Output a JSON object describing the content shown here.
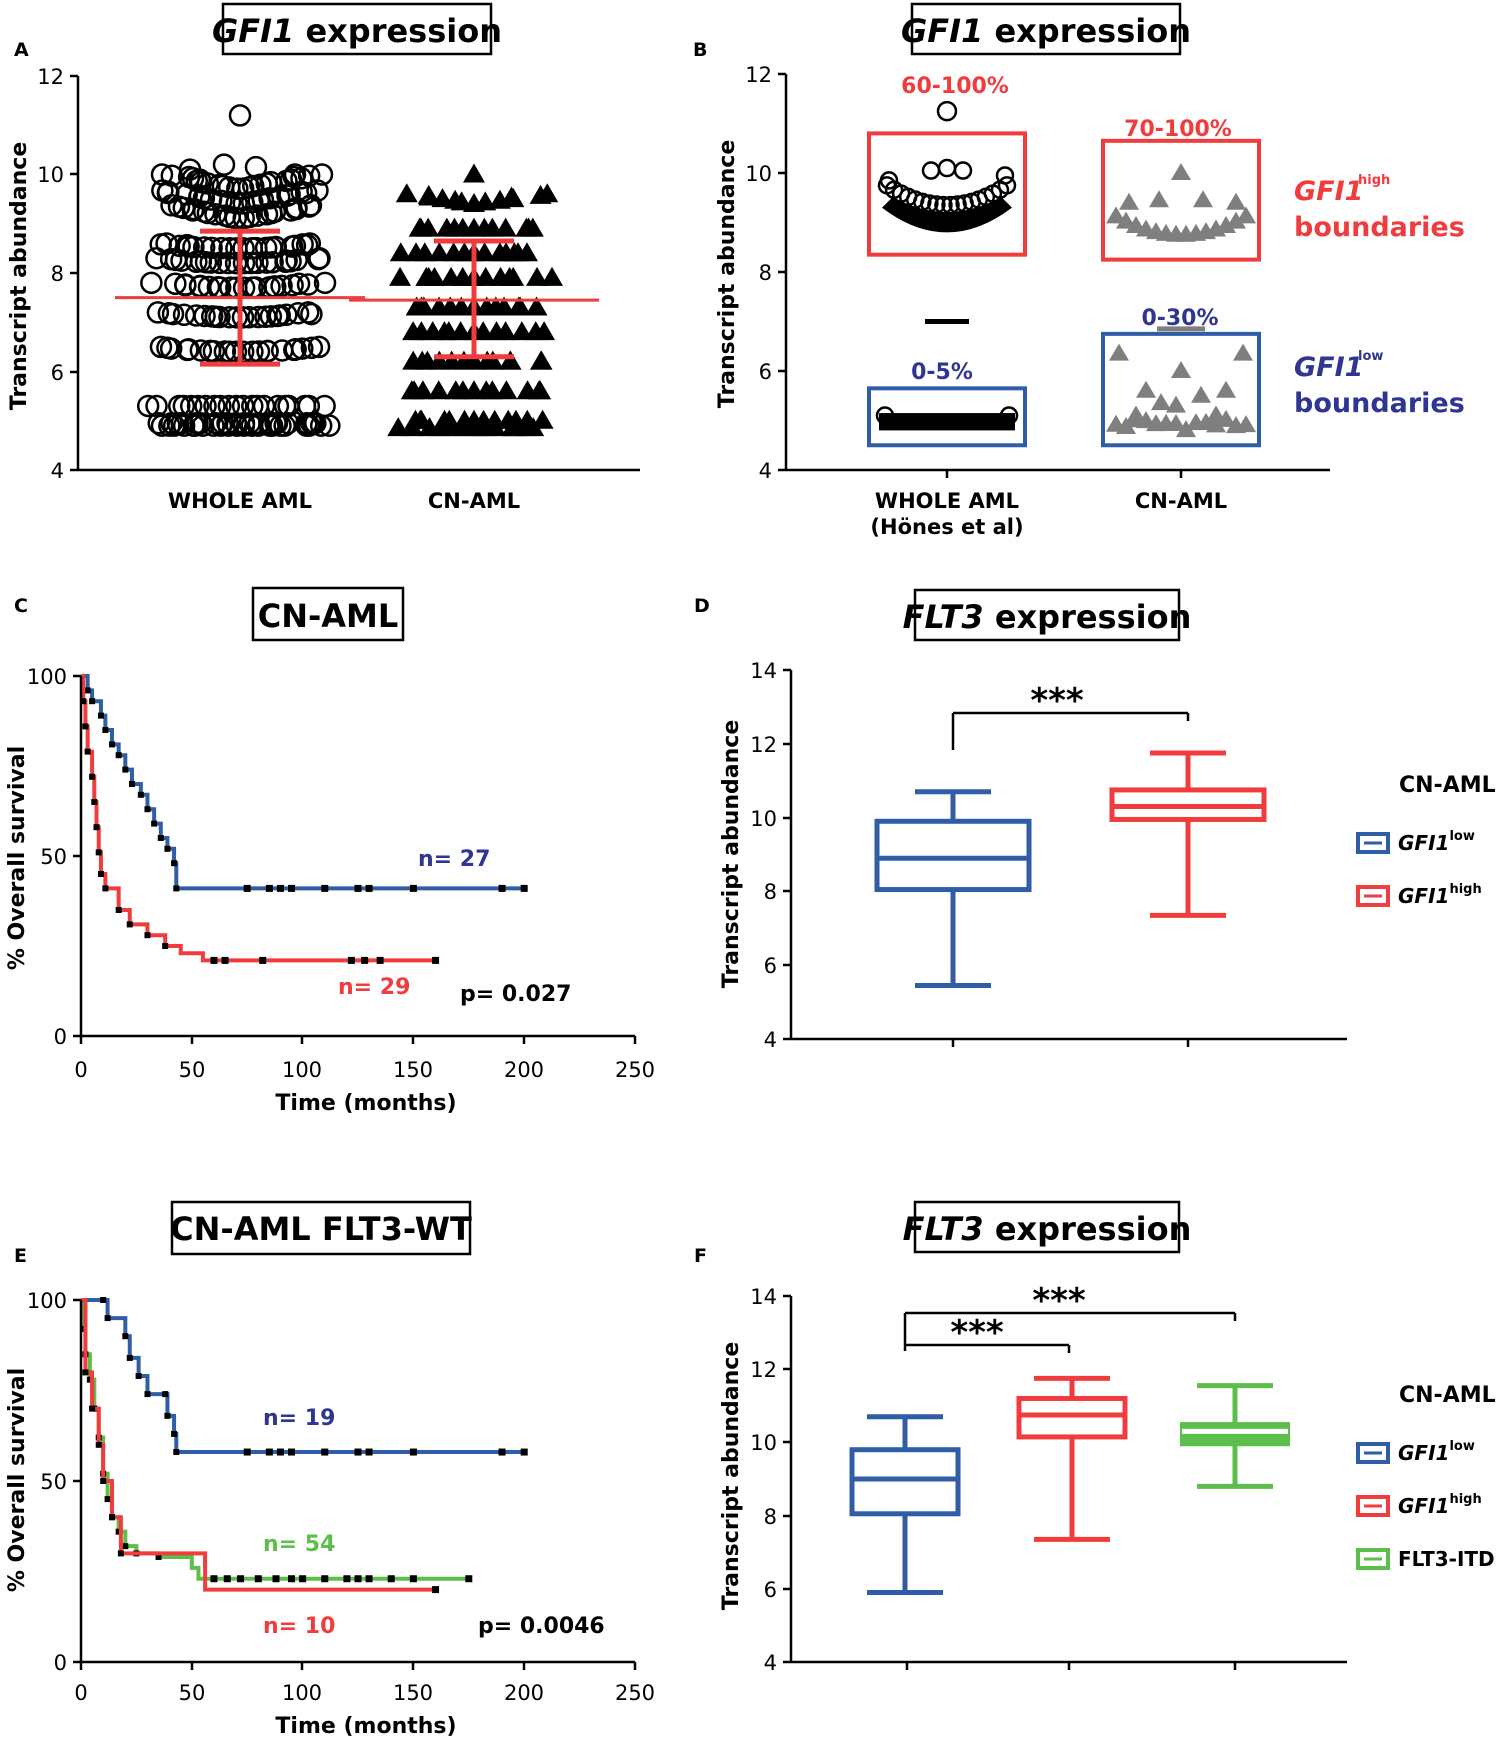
{
  "colors": {
    "blue": "#2f5ea6",
    "navy": "#2e3592",
    "red": "#f03c3c",
    "green": "#5cbf4a",
    "gray": "#7f7f7f",
    "black": "#000000"
  },
  "chart_data": [
    {
      "panel": "A",
      "type": "scatter",
      "title_italic": "GFI1",
      "title_rest": " expression",
      "ylabel": "Transcript abundance",
      "ylim": [
        4,
        12
      ],
      "yticks": [
        "4",
        "6",
        "8",
        "10",
        "12"
      ],
      "categories": [
        "WHOLE AML",
        "CN-AML"
      ],
      "series": [
        {
          "category": "WHOLE AML",
          "marker": "circle",
          "mean": 7.5,
          "sd_low": 6.15,
          "sd_high": 8.85,
          "min": 4.9,
          "max": 11.2
        },
        {
          "category": "CN-AML",
          "marker": "triangle",
          "mean": 7.45,
          "sd_low": 6.3,
          "sd_high": 8.65,
          "min": 4.9,
          "max": 10.0
        }
      ]
    },
    {
      "panel": "B",
      "type": "scatter",
      "title_italic": "GFI1",
      "title_rest": " expression",
      "ylabel": "Transcript abundance",
      "ylim": [
        4,
        12
      ],
      "yticks": [
        "4",
        "6",
        "8",
        "10",
        "12"
      ],
      "categories": [
        "WHOLE AML",
        "CN-AML"
      ],
      "category_sublabels": [
        "(Hönes et al)",
        ""
      ],
      "annotations": {
        "whole_high": "60-100%",
        "whole_low": "0-5%",
        "cn_high": "70-100%",
        "cn_low": "0-30%",
        "high_word": "GFI1",
        "high_sup": "high",
        "high_line2": "boundaries",
        "low_word": "GFI1",
        "low_sup": "low",
        "low_line2": "boundaries"
      },
      "boxes": [
        {
          "category": "WHOLE AML",
          "group": "high",
          "ymin": 8.35,
          "ymax": 10.8
        },
        {
          "category": "WHOLE AML",
          "group": "low",
          "ymin": 4.5,
          "ymax": 5.65
        },
        {
          "category": "CN-AML",
          "group": "high",
          "ymin": 8.25,
          "ymax": 10.65
        },
        {
          "category": "CN-AML",
          "group": "low",
          "ymin": 4.5,
          "ymax": 6.75
        }
      ],
      "markers": {
        "whole_mean": 7.0,
        "cn_mean": 6.85
      }
    },
    {
      "panel": "C",
      "type": "line",
      "title": "CN-AML",
      "ylabel": "% Overall survival",
      "xlabel": "Time (months)",
      "xlim": [
        0,
        250
      ],
      "ylim": [
        0,
        100
      ],
      "xticks": [
        "0",
        "50",
        "100",
        "150",
        "200",
        "250"
      ],
      "yticks": [
        "0",
        "50",
        "100"
      ],
      "pvalue": "p= 0.027",
      "series": [
        {
          "name": "n= 27",
          "color": "blue",
          "steps": [
            [
              0,
              100
            ],
            [
              3,
              96
            ],
            [
              5,
              93
            ],
            [
              9,
              89
            ],
            [
              11,
              85
            ],
            [
              14,
              81
            ],
            [
              17,
              78
            ],
            [
              20,
              74
            ],
            [
              23,
              70
            ],
            [
              27,
              67
            ],
            [
              30,
              63
            ],
            [
              33,
              59
            ],
            [
              36,
              55
            ],
            [
              39,
              52
            ],
            [
              42,
              48
            ],
            [
              43,
              41
            ],
            [
              200,
              41
            ]
          ],
          "censors": [
            75,
            85,
            90,
            95,
            110,
            125,
            130,
            150,
            190,
            200
          ]
        },
        {
          "name": "n= 29",
          "color": "red",
          "steps": [
            [
              0,
              100
            ],
            [
              1,
              93
            ],
            [
              2,
              86
            ],
            [
              3,
              79
            ],
            [
              5,
              72
            ],
            [
              6,
              65
            ],
            [
              7,
              58
            ],
            [
              8,
              51
            ],
            [
              9,
              45
            ],
            [
              11,
              41
            ],
            [
              17,
              35
            ],
            [
              22,
              31
            ],
            [
              30,
              28
            ],
            [
              38,
              25
            ],
            [
              45,
              23
            ],
            [
              55,
              21
            ],
            [
              160,
              21
            ]
          ],
          "censors": [
            60,
            65,
            82,
            122,
            128,
            135,
            160
          ]
        }
      ]
    },
    {
      "panel": "D",
      "type": "box",
      "title_italic": "FLT3",
      "title_rest": " expression",
      "ylabel": "Transcript abundance",
      "ylim": [
        4,
        14
      ],
      "yticks": [
        "4",
        "6",
        "8",
        "10",
        "12",
        "14"
      ],
      "legend_title": "CN-AML",
      "significance": [
        "***"
      ],
      "series": [
        {
          "name": "GFI1",
          "sup": "low",
          "color": "blue",
          "min": 5.45,
          "q1": 8.05,
          "median": 8.9,
          "q3": 9.9,
          "max": 10.7
        },
        {
          "name": "GFI1",
          "sup": "high",
          "color": "red",
          "min": 7.35,
          "q1": 9.95,
          "median": 10.3,
          "q3": 10.75,
          "max": 11.75
        }
      ]
    },
    {
      "panel": "E",
      "type": "line",
      "title": "CN-AML FLT3-WT",
      "ylabel": "% Overall survival",
      "xlabel": "Time (months)",
      "xlim": [
        0,
        250
      ],
      "ylim": [
        0,
        100
      ],
      "xticks": [
        "0",
        "50",
        "100",
        "150",
        "200",
        "250"
      ],
      "yticks": [
        "0",
        "50",
        "100"
      ],
      "pvalue": "p= 0.0046",
      "series": [
        {
          "name": "n= 19",
          "color": "blue",
          "steps": [
            [
              0,
              100
            ],
            [
              10,
              100
            ],
            [
              12,
              95
            ],
            [
              20,
              90
            ],
            [
              22,
              84
            ],
            [
              26,
              79
            ],
            [
              30,
              74
            ],
            [
              38,
              74
            ],
            [
              39,
              68
            ],
            [
              42,
              63
            ],
            [
              43,
              58
            ],
            [
              200,
              58
            ]
          ],
          "censors": [
            75,
            85,
            90,
            95,
            110,
            125,
            130,
            150,
            190,
            200
          ]
        },
        {
          "name": "n= 54",
          "color": "green",
          "steps": [
            [
              0,
              100
            ],
            [
              1,
              92
            ],
            [
              2,
              85
            ],
            [
              4,
              78
            ],
            [
              6,
              70
            ],
            [
              8,
              62
            ],
            [
              10,
              52
            ],
            [
              12,
              45
            ],
            [
              14,
              40
            ],
            [
              17,
              36
            ],
            [
              20,
              32
            ],
            [
              25,
              30
            ],
            [
              35,
              29
            ],
            [
              50,
              26
            ],
            [
              53,
              23
            ],
            [
              175,
              23
            ]
          ],
          "censors": [
            60,
            66,
            72,
            80,
            88,
            95,
            100,
            110,
            120,
            125,
            130,
            140,
            150,
            175
          ]
        },
        {
          "name": "n= 10",
          "color": "red",
          "steps": [
            [
              0,
              100
            ],
            [
              2,
              80
            ],
            [
              5,
              70
            ],
            [
              8,
              60
            ],
            [
              10,
              50
            ],
            [
              14,
              40
            ],
            [
              18,
              30
            ],
            [
              55,
              30
            ],
            [
              56,
              20
            ],
            [
              160,
              20
            ]
          ],
          "censors": [
            160
          ]
        }
      ]
    },
    {
      "panel": "F",
      "type": "box",
      "title_italic": "FLT3",
      "title_rest": " expression",
      "ylabel": "Transcript abundance",
      "ylim": [
        4,
        14
      ],
      "yticks": [
        "4",
        "6",
        "8",
        "10",
        "12",
        "14"
      ],
      "legend_title": "CN-AML",
      "significance": [
        "***",
        "***"
      ],
      "series": [
        {
          "name": "GFI1",
          "sup": "low",
          "color": "blue",
          "min": 5.9,
          "q1": 8.05,
          "median": 9.0,
          "q3": 9.8,
          "max": 10.7
        },
        {
          "name": "GFI1",
          "sup": "high",
          "color": "red",
          "min": 7.35,
          "q1": 10.15,
          "median": 10.75,
          "q3": 11.2,
          "max": 11.75
        },
        {
          "name": "FLT3-ITD",
          "sup": "",
          "color": "green",
          "min": 8.8,
          "q1": 9.95,
          "median": 10.3,
          "q3": 10.5,
          "max": 11.55
        }
      ]
    }
  ]
}
